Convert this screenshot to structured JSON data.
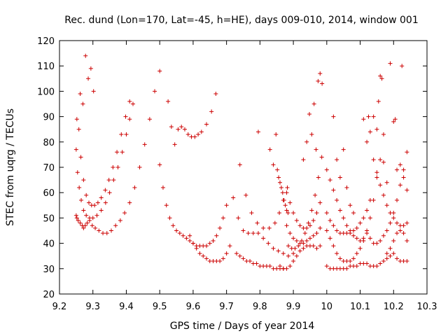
{
  "chart_data": {
    "type": "scatter",
    "title": "Rec. dund (Lon=170, Lat=-45, h=HE), days 009-010, 2014, window 001",
    "xlabel": "GPS time / Days of year 2014",
    "ylabel": "STEC from uqrg / TECUs",
    "xlim": [
      9.2,
      10.3
    ],
    "ylim": [
      20,
      120
    ],
    "xticks": [
      9.2,
      9.3,
      9.4,
      9.5,
      9.6,
      9.7,
      9.8,
      9.9,
      10.0,
      10.1,
      10.2,
      10.3
    ],
    "xtick_labels": [
      "9.2",
      "9.3",
      "9.4",
      "9.5",
      "9.6",
      "9.7",
      "9.8",
      "9.9",
      "10",
      "10.1",
      "10.2",
      "10.3"
    ],
    "yticks": [
      20,
      30,
      40,
      50,
      60,
      70,
      80,
      90,
      100,
      110,
      120
    ],
    "ytick_labels": [
      "20",
      "30",
      "40",
      "50",
      "60",
      "70",
      "80",
      "90",
      "100",
      "110",
      "120"
    ],
    "grid": false,
    "marker": "plus",
    "marker_color": "#cc0000",
    "series": [
      {
        "x": [
          9.25,
          9.252,
          9.256,
          9.262,
          9.268,
          9.272,
          9.277,
          9.283,
          9.29,
          9.298,
          9.307,
          9.318,
          9.33,
          9.342,
          9.355,
          9.368,
          9.382,
          9.395,
          9.41,
          9.425,
          9.44,
          9.455,
          9.47,
          9.485,
          9.5
        ],
        "y": [
          51,
          50,
          49,
          48,
          47,
          46,
          47,
          48,
          49,
          47,
          46,
          45,
          44,
          44,
          45,
          47,
          49,
          52,
          56,
          62,
          70,
          79,
          89,
          100,
          108
        ]
      },
      {
        "x": [
          9.25,
          9.254,
          9.259,
          9.265,
          9.272,
          9.28,
          9.29,
          9.3,
          9.312,
          9.325,
          9.338,
          9.35,
          9.362,
          9.375,
          9.388,
          9.4,
          9.41,
          9.42
        ],
        "y": [
          77,
          68,
          62,
          57,
          53,
          51,
          50,
          50,
          51,
          53,
          56,
          60,
          65,
          70,
          76,
          83,
          89,
          95
        ]
      },
      {
        "x": [
          9.252,
          9.258,
          9.264,
          9.272,
          9.28,
          9.288,
          9.296,
          9.305,
          9.315,
          9.325,
          9.337,
          9.348,
          9.36,
          9.372,
          9.385,
          9.398,
          9.41
        ],
        "y": [
          89,
          85,
          74,
          65,
          59,
          56,
          55,
          55,
          56,
          58,
          61,
          65,
          70,
          76,
          83,
          90,
          96
        ]
      },
      {
        "x": [
          9.262,
          9.27,
          9.278,
          9.286,
          9.294,
          9.302
        ],
        "y": [
          99,
          95,
          114,
          105,
          109,
          100
        ]
      },
      {
        "x": [
          9.5,
          9.51,
          9.52,
          9.53,
          9.54,
          9.55,
          9.56,
          9.57,
          9.58,
          9.59,
          9.6,
          9.61,
          9.62,
          9.63,
          9.64,
          9.65,
          9.66,
          9.67,
          9.68,
          9.69,
          9.7
        ],
        "y": [
          71,
          62,
          55,
          50,
          47,
          45,
          44,
          43,
          42,
          41,
          40,
          39,
          39,
          39,
          39,
          40,
          41,
          43,
          46,
          50,
          55
        ]
      },
      {
        "x": [
          9.525,
          9.535,
          9.545,
          9.555,
          9.565,
          9.575,
          9.585,
          9.595,
          9.605,
          9.615,
          9.625,
          9.64,
          9.655,
          9.668
        ],
        "y": [
          96,
          86,
          79,
          85,
          86,
          85,
          83,
          82,
          82,
          83,
          84,
          87,
          92,
          99
        ]
      },
      {
        "x": [
          9.59,
          9.6,
          9.61,
          9.62,
          9.63,
          9.64,
          9.65,
          9.66,
          9.67,
          9.68,
          9.69,
          9.7,
          9.71
        ],
        "y": [
          43,
          40,
          38,
          36,
          35,
          34,
          33,
          33,
          33,
          33,
          34,
          36,
          39
        ]
      },
      {
        "x": [
          9.73,
          9.74,
          9.75,
          9.76,
          9.77,
          9.78,
          9.79,
          9.8,
          9.81,
          9.82,
          9.83,
          9.84,
          9.85,
          9.86,
          9.87
        ],
        "y": [
          36,
          35,
          34,
          33,
          33,
          32,
          32,
          31,
          31,
          31,
          31,
          30,
          30,
          30,
          30
        ]
      },
      {
        "x": [
          9.72,
          9.735,
          9.75,
          9.765,
          9.78,
          9.795,
          9.81,
          9.825,
          9.84,
          9.855,
          9.87,
          9.885,
          9.9
        ],
        "y": [
          58,
          50,
          45,
          44,
          44,
          44,
          42,
          40,
          38,
          37,
          36,
          35,
          36
        ]
      },
      {
        "x": [
          9.74,
          9.758,
          9.775,
          9.792,
          9.81,
          9.828,
          9.845,
          9.858,
          9.87,
          9.882
        ],
        "y": [
          71,
          59,
          52,
          48,
          46,
          46,
          48,
          52,
          57,
          62
        ]
      },
      {
        "x": [
          9.795,
          9.83,
          9.84,
          9.848,
          9.852,
          9.856,
          9.86,
          9.864,
          9.868,
          9.872,
          9.876,
          9.88,
          9.884
        ],
        "y": [
          84,
          77,
          71,
          83,
          69,
          66,
          64,
          62,
          60,
          57,
          55,
          53,
          52
        ]
      },
      {
        "x": [
          9.86,
          9.87,
          9.88,
          9.89,
          9.9,
          9.91,
          9.92,
          9.93,
          9.94,
          9.95,
          9.96,
          9.97,
          9.98
        ],
        "y": [
          31,
          30,
          30,
          31,
          33,
          35,
          37,
          38,
          39,
          39,
          39,
          38,
          39
        ]
      },
      {
        "x": [
          9.88,
          9.89,
          9.9,
          9.91,
          9.92,
          9.93,
          9.94,
          9.95,
          9.96,
          9.97,
          9.98
        ],
        "y": [
          47,
          44,
          42,
          41,
          40,
          40,
          41,
          42,
          43,
          44,
          46
        ]
      },
      {
        "x": [
          9.88,
          9.89,
          9.9,
          9.91,
          9.92,
          9.93,
          9.94,
          9.95,
          9.96,
          9.97,
          9.98
        ],
        "y": [
          60,
          56,
          52,
          49,
          47,
          46,
          46,
          47,
          49,
          52,
          56
        ]
      },
      {
        "x": [
          9.885,
          9.895,
          9.905,
          9.915,
          9.925,
          9.935,
          9.945,
          9.955,
          9.965,
          9.975,
          9.985
        ],
        "y": [
          39,
          38,
          38,
          39,
          41,
          44,
          48,
          53,
          59,
          66,
          74
        ]
      },
      {
        "x": [
          9.93,
          9.94,
          9.948,
          9.955,
          9.962,
          9.968,
          9.974,
          9.98,
          9.986
        ],
        "y": [
          73,
          80,
          91,
          83,
          95,
          77,
          104,
          107,
          103
        ]
      },
      {
        "x": [
          10.0,
          10.01,
          10.02,
          10.03,
          10.04,
          10.05,
          10.06,
          10.07,
          10.08,
          10.09,
          10.1,
          10.11,
          10.12,
          10.13,
          10.14,
          10.15,
          10.16,
          10.17,
          10.18,
          10.19,
          10.2,
          10.21,
          10.22,
          10.23,
          10.24
        ],
        "y": [
          31,
          30,
          30,
          30,
          30,
          30,
          30,
          31,
          31,
          31,
          32,
          32,
          32,
          31,
          31,
          31,
          32,
          33,
          34,
          35,
          36,
          34,
          33,
          33,
          33
        ]
      },
      {
        "x": [
          10.0,
          10.01,
          10.02,
          10.03,
          10.04,
          10.05,
          10.06,
          10.07,
          10.08,
          10.09,
          10.1,
          10.11,
          10.12,
          10.13,
          10.14,
          10.15
        ],
        "y": [
          45,
          42,
          39,
          36,
          34,
          33,
          33,
          33,
          34,
          36,
          38,
          41,
          45,
          50,
          57,
          66
        ]
      },
      {
        "x": [
          10.0,
          10.01,
          10.02,
          10.03,
          10.04,
          10.05,
          10.06,
          10.07,
          10.08,
          10.09,
          10.1,
          10.11,
          10.12,
          10.13
        ],
        "y": [
          52,
          49,
          47,
          45,
          44,
          44,
          44,
          44,
          45,
          46,
          48,
          50,
          53,
          57
        ]
      },
      {
        "x": [
          10.0,
          10.01,
          10.02,
          10.03,
          10.04,
          10.05,
          10.06,
          10.07,
          10.08,
          10.09,
          10.1,
          10.11,
          10.12
        ],
        "y": [
          69,
          65,
          61,
          57,
          53,
          50,
          47,
          45,
          43,
          42,
          41,
          42,
          44
        ]
      },
      {
        "x": [
          10.02,
          10.03,
          10.04,
          10.05,
          10.06,
          10.07,
          10.08
        ],
        "y": [
          90,
          73,
          66,
          77,
          62,
          55,
          52
        ]
      },
      {
        "x": [
          10.11,
          10.12,
          10.125,
          10.13,
          10.14,
          10.15,
          10.155,
          10.16,
          10.165,
          10.17
        ],
        "y": [
          89,
          80,
          90,
          84,
          90,
          85,
          96,
          106,
          105,
          83
        ]
      },
      {
        "x": [
          10.14,
          10.15,
          10.16,
          10.17,
          10.18,
          10.19,
          10.2,
          10.21,
          10.22,
          10.23,
          10.24
        ],
        "y": [
          73,
          68,
          63,
          59,
          55,
          52,
          50,
          48,
          47,
          47,
          48
        ]
      },
      {
        "x": [
          10.13,
          10.14,
          10.15,
          10.16,
          10.17,
          10.18,
          10.19,
          10.2,
          10.21,
          10.22,
          10.23,
          10.24
        ],
        "y": [
          42,
          40,
          40,
          41,
          43,
          45,
          48,
          52,
          57,
          63,
          69,
          76
        ]
      },
      {
        "x": [
          10.16,
          10.17,
          10.18,
          10.19,
          10.2,
          10.205,
          10.21,
          10.22,
          10.225,
          10.23,
          10.24
        ],
        "y": [
          73,
          72,
          64,
          111,
          88,
          89,
          69,
          71,
          110,
          66,
          61
        ]
      },
      {
        "x": [
          10.18,
          10.19,
          10.2,
          10.21,
          10.22,
          10.23,
          10.24
        ],
        "y": [
          36,
          38,
          41,
          44,
          45,
          44,
          41
        ]
      }
    ]
  }
}
